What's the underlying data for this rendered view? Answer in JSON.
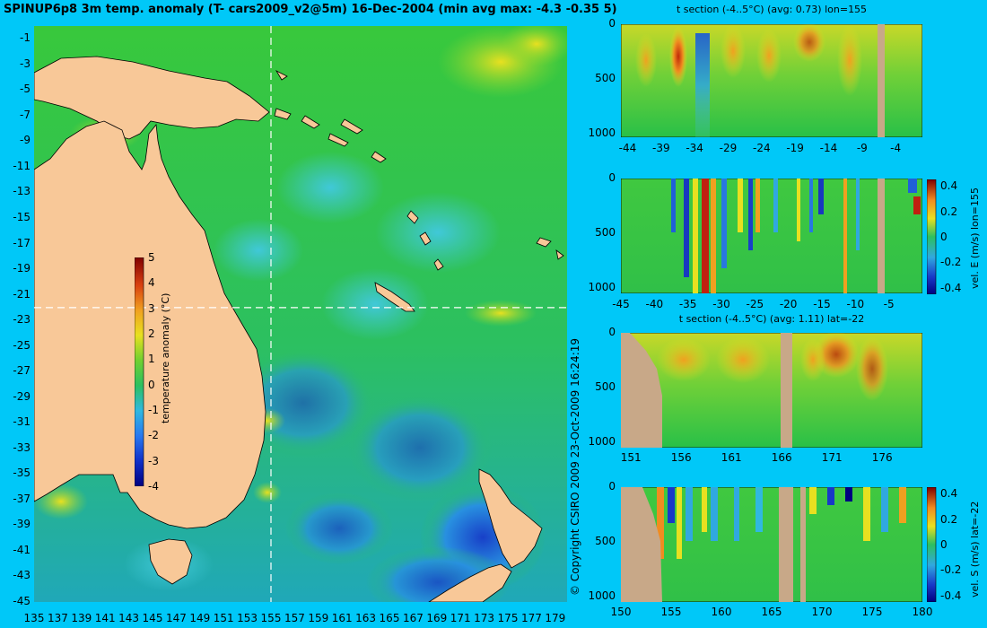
{
  "title": "SPINUP6p8 3m temp. anomaly (T- cars2009_v2@5m) 16-Dec-2004 (min avg max: -4.3 -0.35 5)",
  "copyright": "© Copyright CSIRO 2009   23-Oct-2009 16:24:19",
  "colors": {
    "background": "#00c8f8",
    "land": "#f8c898",
    "section_land": "#c8a888",
    "ocean_base": "#2cc840",
    "crosshair": "#ffffff"
  },
  "chart_data": [
    {
      "type": "heatmap",
      "name": "main-map",
      "title": "",
      "x_ticks": [
        "135",
        "137",
        "139",
        "141",
        "143",
        "145",
        "147",
        "149",
        "151",
        "153",
        "155",
        "157",
        "159",
        "161",
        "163",
        "165",
        "167",
        "169",
        "171",
        "173",
        "175",
        "177",
        "179"
      ],
      "y_ticks": [
        "-1",
        "-3",
        "-5",
        "-7",
        "-9",
        "-11",
        "-13",
        "-15",
        "-17",
        "-19",
        "-21",
        "-23",
        "-25",
        "-27",
        "-29",
        "-31",
        "-33",
        "-35",
        "-37",
        "-39",
        "-41",
        "-43",
        "-45"
      ],
      "xlim": [
        135,
        180
      ],
      "ylim": [
        -45,
        0
      ],
      "crosshair": {
        "lon": 155,
        "lat": -22
      },
      "colorbar": {
        "label": "temperature anomaly (°C)",
        "ticks": [
          "5",
          "4",
          "3",
          "2",
          "1",
          "0",
          "-1",
          "-2",
          "-3",
          "-4"
        ],
        "range": [
          -4,
          5
        ]
      }
    },
    {
      "type": "heatmap",
      "name": "t-section-lon155",
      "title": "t section (-4..5°C) (avg: 0.73) lon=155",
      "x_ticks": [
        "-44",
        "-39",
        "-34",
        "-29",
        "-24",
        "-19",
        "-14",
        "-9",
        "-4"
      ],
      "y_ticks": [
        "0",
        "500",
        "1000"
      ],
      "xlim": [
        -45,
        0
      ],
      "ylim": [
        0,
        1050
      ]
    },
    {
      "type": "heatmap",
      "name": "vel-e-section-lon155",
      "title": "",
      "x_ticks": [
        "-45",
        "-40",
        "-35",
        "-30",
        "-25",
        "-20",
        "-15",
        "-10",
        "-5"
      ],
      "y_ticks": [
        "0",
        "500",
        "1000"
      ],
      "xlim": [
        -45,
        0
      ],
      "ylim": [
        0,
        1050
      ],
      "colorbar": {
        "label": "vel. E (m/s) lon=155",
        "ticks": [
          "0.4",
          "0.2",
          "0",
          "-0.2",
          "-0.4"
        ],
        "range": [
          -0.45,
          0.45
        ]
      }
    },
    {
      "type": "heatmap",
      "name": "t-section-lat-22",
      "title": "t section (-4..5°C) (avg: 1.11) lat=-22",
      "x_ticks": [
        "151",
        "156",
        "161",
        "166",
        "171",
        "176"
      ],
      "y_ticks": [
        "0",
        "500",
        "1000"
      ],
      "xlim": [
        150,
        180
      ],
      "ylim": [
        0,
        1050
      ]
    },
    {
      "type": "heatmap",
      "name": "vel-s-section-lat-22",
      "title": "",
      "x_ticks": [
        "150",
        "155",
        "160",
        "165",
        "170",
        "175",
        "180"
      ],
      "y_ticks": [
        "0",
        "500",
        "1000"
      ],
      "xlim": [
        150,
        180
      ],
      "ylim": [
        0,
        1050
      ],
      "colorbar": {
        "label": "vel. S (m/s) lat=-22",
        "ticks": [
          "0.4",
          "0.2",
          "0",
          "-0.2",
          "-0.4"
        ],
        "range": [
          -0.45,
          0.45
        ]
      }
    }
  ]
}
